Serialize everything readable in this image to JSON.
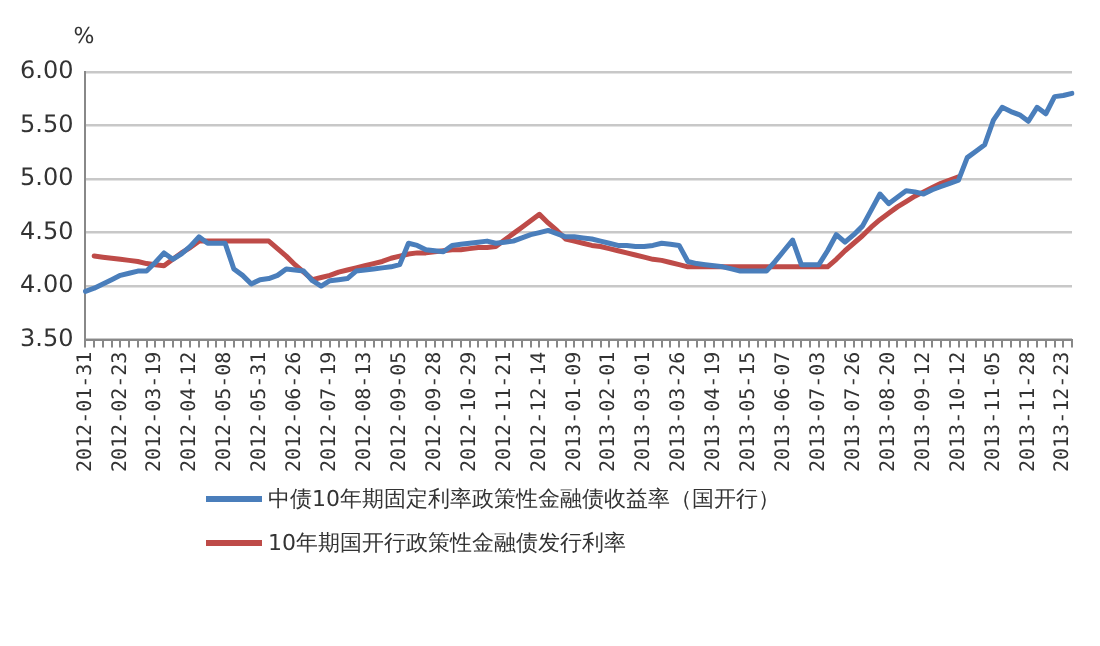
{
  "chart_data": {
    "type": "line",
    "ylabel": "%",
    "ylim": [
      3.5,
      6
    ],
    "yticks": [
      {
        "value": 3.5,
        "label": "3.50"
      },
      {
        "value": 4,
        "label": "4.00"
      },
      {
        "value": 4.5,
        "label": "4.50"
      },
      {
        "value": 5,
        "label": "5.00"
      },
      {
        "value": 5.5,
        "label": "5.50"
      },
      {
        "value": 6,
        "label": "6.00"
      }
    ],
    "grid": "y",
    "legend": "bottom",
    "marker": "none",
    "line_style": "solid",
    "categories": [
      "2012-01-31",
      null,
      null,
      null,
      "2012-02-23",
      null,
      null,
      null,
      "2012-03-19",
      null,
      null,
      null,
      "2012-04-12",
      null,
      null,
      null,
      "2012-05-08",
      null,
      null,
      null,
      "2012-05-31",
      null,
      null,
      null,
      "2012-06-26",
      null,
      null,
      null,
      "2012-07-19",
      null,
      null,
      null,
      "2012-08-13",
      null,
      null,
      null,
      "2012-09-05",
      null,
      null,
      null,
      "2012-09-28",
      null,
      null,
      null,
      "2012-10-29",
      null,
      null,
      null,
      "2012-11-21",
      null,
      null,
      null,
      "2012-12-14",
      null,
      null,
      null,
      "2013-01-09",
      null,
      null,
      null,
      "2013-02-01",
      null,
      null,
      null,
      "2013-03-01",
      null,
      null,
      null,
      "2013-03-26",
      null,
      null,
      null,
      "2013-04-19",
      null,
      null,
      null,
      "2013-05-15",
      null,
      null,
      null,
      "2013-06-07",
      null,
      null,
      null,
      "2013-07-03",
      null,
      null,
      null,
      "2013-07-26",
      null,
      null,
      null,
      "2013-08-20",
      null,
      null,
      null,
      "2013-09-12",
      null,
      null,
      null,
      "2013-10-12",
      null,
      null,
      null,
      "2013-11-05",
      null,
      null,
      null,
      "2013-11-28",
      null,
      null,
      null,
      "2013-12-23",
      null
    ],
    "series": [
      {
        "name": "中债10年期固定利率政策性金融债收益率（国开行）",
        "color": "#4a7ebb",
        "values": [
          3.95,
          3.98,
          4.02,
          4.06,
          4.1,
          4.12,
          4.14,
          4.14,
          4.22,
          4.31,
          4.25,
          4.3,
          4.37,
          4.46,
          4.4,
          4.4,
          4.4,
          4.16,
          4.1,
          4.02,
          4.06,
          4.07,
          4.1,
          4.16,
          4.15,
          4.14,
          4.05,
          4.0,
          4.05,
          4.06,
          4.07,
          4.14,
          4.15,
          4.16,
          4.17,
          4.18,
          4.2,
          4.4,
          4.38,
          4.34,
          4.33,
          4.32,
          4.38,
          4.39,
          4.4,
          4.41,
          4.42,
          4.4,
          4.41,
          4.42,
          4.45,
          4.48,
          4.5,
          4.52,
          4.49,
          4.46,
          4.46,
          4.45,
          4.44,
          4.42,
          4.4,
          4.38,
          4.38,
          4.37,
          4.37,
          4.38,
          4.4,
          4.39,
          4.38,
          4.23,
          4.21,
          4.2,
          4.19,
          4.18,
          4.16,
          4.14,
          4.14,
          4.14,
          4.14,
          4.23,
          4.33,
          4.43,
          4.2,
          4.2,
          4.2,
          4.33,
          4.48,
          4.41,
          4.48,
          4.56,
          4.71,
          4.86,
          4.77,
          4.83,
          4.89,
          4.88,
          4.86,
          4.9,
          4.93,
          4.96,
          4.99,
          5.2,
          5.26,
          5.32,
          5.55,
          5.67,
          5.63,
          5.6,
          5.54,
          5.67,
          5.61,
          5.77,
          5.78,
          5.8
        ]
      },
      {
        "name": "10年期国开行政策性金融债发行利率",
        "color": "#be4b48",
        "values": [
          null,
          4.28,
          4.27,
          4.26,
          4.25,
          4.24,
          4.23,
          4.21,
          4.2,
          4.19,
          4.25,
          4.31,
          4.36,
          4.42,
          4.42,
          4.42,
          4.42,
          4.42,
          4.42,
          4.42,
          4.42,
          4.42,
          4.35,
          4.28,
          4.2,
          4.13,
          4.06,
          4.08,
          4.1,
          4.13,
          4.15,
          4.17,
          4.19,
          4.21,
          4.23,
          4.26,
          4.28,
          4.3,
          4.31,
          4.31,
          4.32,
          4.33,
          4.34,
          4.34,
          4.35,
          4.36,
          4.36,
          4.37,
          4.43,
          4.49,
          4.55,
          4.61,
          4.67,
          4.59,
          4.52,
          4.44,
          4.42,
          4.4,
          4.38,
          4.37,
          4.35,
          4.33,
          4.31,
          4.29,
          4.27,
          4.25,
          4.24,
          4.22,
          4.2,
          4.18,
          4.18,
          4.18,
          4.18,
          4.18,
          4.18,
          4.18,
          4.18,
          4.18,
          4.18,
          4.18,
          4.18,
          4.18,
          4.18,
          4.18,
          4.18,
          4.18,
          4.25,
          4.33,
          4.4,
          4.47,
          4.55,
          4.62,
          4.68,
          4.74,
          4.79,
          4.84,
          4.88,
          4.92,
          4.96,
          4.99,
          5.02,
          null,
          null,
          null,
          null,
          null,
          null,
          null,
          null,
          null,
          null,
          null,
          null,
          null
        ]
      }
    ]
  }
}
